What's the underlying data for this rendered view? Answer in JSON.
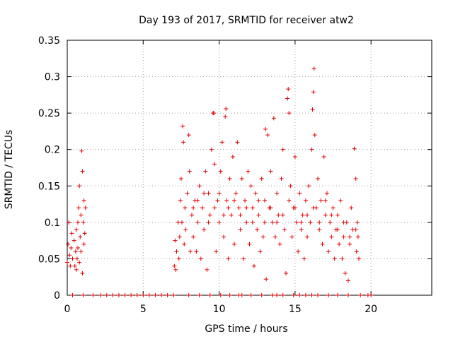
{
  "chart_data": {
    "type": "scatter",
    "title": "Day 193 of 2017, SRMTID for receiver atw2",
    "xlabel": "GPS time / hours",
    "ylabel": "SRMTID / TECUs",
    "xlim": [
      0,
      24
    ],
    "ylim": [
      0,
      0.35
    ],
    "grid": true,
    "x_ticks": [
      0,
      5,
      10,
      15,
      20
    ],
    "x_tick_labels": [
      "0",
      "5",
      "10",
      "15",
      "20"
    ],
    "y_ticks": [
      0,
      0.05,
      0.1,
      0.15,
      0.2,
      0.25,
      0.3,
      0.35
    ],
    "y_tick_labels": [
      "0",
      "0.05",
      "0.1",
      "0.15",
      "0.2",
      "0.25",
      "0.3",
      "0.35"
    ],
    "marker": "+",
    "series_color": "#e00000",
    "series": [
      {
        "name": "SRMTID",
        "points": [
          [
            0.0,
            0.045
          ],
          [
            0.05,
            0.07
          ],
          [
            0.1,
            0.1
          ],
          [
            0.15,
            0.055
          ],
          [
            0.2,
            0.04
          ],
          [
            0.25,
            0.065
          ],
          [
            0.3,
            0.085
          ],
          [
            0.35,
            0.05
          ],
          [
            0.45,
            0.075
          ],
          [
            0.5,
            0.04
          ],
          [
            0.55,
            0.06
          ],
          [
            0.6,
            0.09
          ],
          [
            0.65,
            0.05
          ],
          [
            0.7,
            0.065
          ],
          [
            0.75,
            0.12
          ],
          [
            0.8,
            0.15
          ],
          [
            0.85,
            0.08
          ],
          [
            0.9,
            0.06
          ],
          [
            0.95,
            0.198
          ],
          [
            1.0,
            0.17
          ],
          [
            1.05,
            0.1
          ],
          [
            1.1,
            0.07
          ],
          [
            1.15,
            0.085
          ],
          [
            1.2,
            0.12
          ],
          [
            0.9,
            0.11
          ],
          [
            0.8,
            0.045
          ],
          [
            1.0,
            0.03
          ],
          [
            0.7,
            0.1
          ],
          [
            1.1,
            0.13
          ],
          [
            0.6,
            0.035
          ],
          [
            7.05,
            0.04
          ],
          [
            7.1,
            0.075
          ],
          [
            7.15,
            0.035
          ],
          [
            7.2,
            0.06
          ],
          [
            7.3,
            0.1
          ],
          [
            7.35,
            0.05
          ],
          [
            7.4,
            0.08
          ],
          [
            7.45,
            0.13
          ],
          [
            7.5,
            0.16
          ],
          [
            7.55,
            0.1
          ],
          [
            7.6,
            0.232
          ],
          [
            7.65,
            0.21
          ],
          [
            7.7,
            0.07
          ],
          [
            7.75,
            0.12
          ],
          [
            7.8,
            0.09
          ],
          [
            7.9,
            0.14
          ],
          [
            8.0,
            0.22
          ],
          [
            8.05,
            0.17
          ],
          [
            8.1,
            0.06
          ],
          [
            8.2,
            0.11
          ],
          [
            8.3,
            0.08
          ],
          [
            8.4,
            0.13
          ],
          [
            8.5,
            0.06
          ],
          [
            8.6,
            0.1
          ],
          [
            8.7,
            0.15
          ],
          [
            8.8,
            0.05
          ],
          [
            8.9,
            0.12
          ],
          [
            9.0,
            0.09
          ],
          [
            9.1,
            0.17
          ],
          [
            9.2,
            0.035
          ],
          [
            9.3,
            0.14
          ],
          [
            9.4,
            0.11
          ],
          [
            9.5,
            0.2
          ],
          [
            9.6,
            0.25
          ],
          [
            9.65,
            0.25
          ],
          [
            9.7,
            0.18
          ],
          [
            9.8,
            0.06
          ],
          [
            9.9,
            0.13
          ],
          [
            10.0,
            0.1
          ],
          [
            10.1,
            0.17
          ],
          [
            10.2,
            0.21
          ],
          [
            10.3,
            0.08
          ],
          [
            10.4,
            0.245
          ],
          [
            10.45,
            0.256
          ],
          [
            10.5,
            0.13
          ],
          [
            10.6,
            0.05
          ],
          [
            10.7,
            0.16
          ],
          [
            10.8,
            0.11
          ],
          [
            10.9,
            0.19
          ],
          [
            11.0,
            0.07
          ],
          [
            11.1,
            0.14
          ],
          [
            11.2,
            0.21
          ],
          [
            11.3,
            0.12
          ],
          [
            11.4,
            0.09
          ],
          [
            11.5,
            0.16
          ],
          [
            11.6,
            0.05
          ],
          [
            11.7,
            0.13
          ],
          [
            11.8,
            0.1
          ],
          [
            11.9,
            0.17
          ],
          [
            12.0,
            0.07
          ],
          [
            12.1,
            0.15
          ],
          [
            12.2,
            0.12
          ],
          [
            12.3,
            0.04
          ],
          [
            12.4,
            0.14
          ],
          [
            12.5,
            0.09
          ],
          [
            12.6,
            0.11
          ],
          [
            12.7,
            0.06
          ],
          [
            12.8,
            0.16
          ],
          [
            12.9,
            0.08
          ],
          [
            13.0,
            0.13
          ],
          [
            13.05,
            0.228
          ],
          [
            13.1,
            0.022
          ],
          [
            13.2,
            0.22
          ],
          [
            13.3,
            0.12
          ],
          [
            13.4,
            0.17
          ],
          [
            13.5,
            0.1
          ],
          [
            13.6,
            0.243
          ],
          [
            13.7,
            0.08
          ],
          [
            13.8,
            0.14
          ],
          [
            13.9,
            0.11
          ],
          [
            14.0,
            0.07
          ],
          [
            14.1,
            0.16
          ],
          [
            14.2,
            0.2
          ],
          [
            14.3,
            0.09
          ],
          [
            14.4,
            0.03
          ],
          [
            14.5,
            0.27
          ],
          [
            14.55,
            0.283
          ],
          [
            14.6,
            0.25
          ],
          [
            14.7,
            0.15
          ],
          [
            14.8,
            0.08
          ],
          [
            14.9,
            0.12
          ],
          [
            15.0,
            0.19
          ],
          [
            15.1,
            0.1
          ],
          [
            15.2,
            0.06
          ],
          [
            15.3,
            0.14
          ],
          [
            15.4,
            0.09
          ],
          [
            15.5,
            0.11
          ],
          [
            15.6,
            0.05
          ],
          [
            15.7,
            0.13
          ],
          [
            15.8,
            0.08
          ],
          [
            15.9,
            0.15
          ],
          [
            16.0,
            0.1
          ],
          [
            16.1,
            0.2
          ],
          [
            16.15,
            0.255
          ],
          [
            16.2,
            0.279
          ],
          [
            16.25,
            0.311
          ],
          [
            16.3,
            0.22
          ],
          [
            16.4,
            0.12
          ],
          [
            16.5,
            0.16
          ],
          [
            16.6,
            0.09
          ],
          [
            16.7,
            0.13
          ],
          [
            16.8,
            0.07
          ],
          [
            16.9,
            0.19
          ],
          [
            17.0,
            0.11
          ],
          [
            17.1,
            0.14
          ],
          [
            17.2,
            0.06
          ],
          [
            17.3,
            0.1
          ],
          [
            17.4,
            0.08
          ],
          [
            17.5,
            0.12
          ],
          [
            17.6,
            0.05
          ],
          [
            17.7,
            0.09
          ],
          [
            17.8,
            0.11
          ],
          [
            17.9,
            0.07
          ],
          [
            18.0,
            0.13
          ],
          [
            18.1,
            0.05
          ],
          [
            18.2,
            0.08
          ],
          [
            18.3,
            0.03
          ],
          [
            18.4,
            0.1
          ],
          [
            18.5,
            0.02
          ],
          [
            18.6,
            0.07
          ],
          [
            18.7,
            0.12
          ],
          [
            18.8,
            0.09
          ],
          [
            18.9,
            0.201
          ],
          [
            19.0,
            0.16
          ],
          [
            19.05,
            0.06
          ],
          [
            19.1,
            0.1
          ],
          [
            19.15,
            0.08
          ],
          [
            19.2,
            0.05
          ],
          [
            8.3,
            0.12
          ],
          [
            8.6,
            0.13
          ],
          [
            9.0,
            0.14
          ],
          [
            9.3,
            0.1
          ],
          [
            9.7,
            0.12
          ],
          [
            10.0,
            0.14
          ],
          [
            10.3,
            0.11
          ],
          [
            10.6,
            0.12
          ],
          [
            11.0,
            0.13
          ],
          [
            11.4,
            0.11
          ],
          [
            11.8,
            0.12
          ],
          [
            12.2,
            0.1
          ],
          [
            12.6,
            0.13
          ],
          [
            13.0,
            0.1
          ],
          [
            13.4,
            0.12
          ],
          [
            13.8,
            0.1
          ],
          [
            14.2,
            0.11
          ],
          [
            14.6,
            0.13
          ],
          [
            15.0,
            0.12
          ],
          [
            15.4,
            0.1
          ],
          [
            15.8,
            0.11
          ],
          [
            16.2,
            0.12
          ],
          [
            16.6,
            0.1
          ],
          [
            17.0,
            0.13
          ],
          [
            17.4,
            0.11
          ],
          [
            17.8,
            0.09
          ],
          [
            18.2,
            0.1
          ],
          [
            18.6,
            0.08
          ],
          [
            19.0,
            0.09
          ]
        ]
      }
    ],
    "zero_points_x": [
      0.35,
      1.05,
      1.7,
      2.2,
      2.6,
      3.0,
      3.4,
      3.8,
      4.2,
      4.6,
      5.0,
      5.4,
      5.8,
      6.2,
      6.6,
      7.0,
      8.0,
      8.7,
      9.4,
      10.1,
      10.7,
      11.3,
      11.5,
      12.1,
      12.8,
      13.5,
      13.8,
      14.2,
      14.9,
      15.3,
      15.7,
      16.1,
      16.5,
      17.2,
      17.8,
      18.5,
      19.3,
      19.8,
      20.0
    ]
  }
}
